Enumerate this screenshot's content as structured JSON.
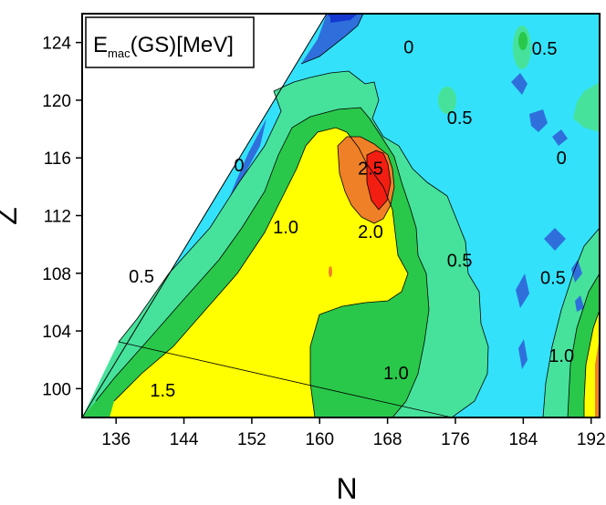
{
  "chart_data": {
    "type": "heatmap",
    "title": {
      "main": "E",
      "subscript": "mac",
      "suffix": "(GS)[MeV]"
    },
    "xlabel": "N",
    "ylabel": "Z",
    "xlim": [
      132,
      193
    ],
    "ylim": [
      98,
      126
    ],
    "xticks": [
      136,
      144,
      152,
      160,
      168,
      176,
      184,
      192
    ],
    "yticks": [
      100,
      104,
      108,
      112,
      116,
      120,
      124
    ],
    "grid": false,
    "colorscale": {
      "levels": [
        -0.5,
        0,
        0.5,
        1.0,
        1.5,
        2.0,
        2.5
      ],
      "colors": {
        "below_0": "#2f6fdc",
        "deep": "#1538d0",
        "0_to_0.5": "#33e2fa",
        "0.5_to_1.0": "#46e29c",
        "1.0_to_1.5": "#29c84a",
        "1.5_to_2.0": "#ffff00",
        "2.0_to_2.5": "#f08027",
        "above_2.5": "#f21e12"
      }
    },
    "contour_labels": [
      {
        "text": "0",
        "x": 150.5,
        "y": 115.5
      },
      {
        "text": "0",
        "x": 170.5,
        "y": 123.7
      },
      {
        "text": "0",
        "x": 188.5,
        "y": 116.0
      },
      {
        "text": "0.5",
        "x": 139.0,
        "y": 107.8
      },
      {
        "text": "0.5",
        "x": 176.5,
        "y": 118.8
      },
      {
        "text": "0.5",
        "x": 176.5,
        "y": 108.9
      },
      {
        "text": "0.5",
        "x": 186.5,
        "y": 123.6
      },
      {
        "text": "0.5",
        "x": 187.5,
        "y": 107.7
      },
      {
        "text": "1.0",
        "x": 156.0,
        "y": 111.2
      },
      {
        "text": "1.0",
        "x": 169.0,
        "y": 101.1
      },
      {
        "text": "1.0",
        "x": 188.5,
        "y": 102.3
      },
      {
        "text": "1.5",
        "x": 141.5,
        "y": 99.9
      },
      {
        "text": "2.0",
        "x": 166.0,
        "y": 110.9
      },
      {
        "text": "2.5",
        "x": 166.0,
        "y": 115.3
      }
    ]
  }
}
